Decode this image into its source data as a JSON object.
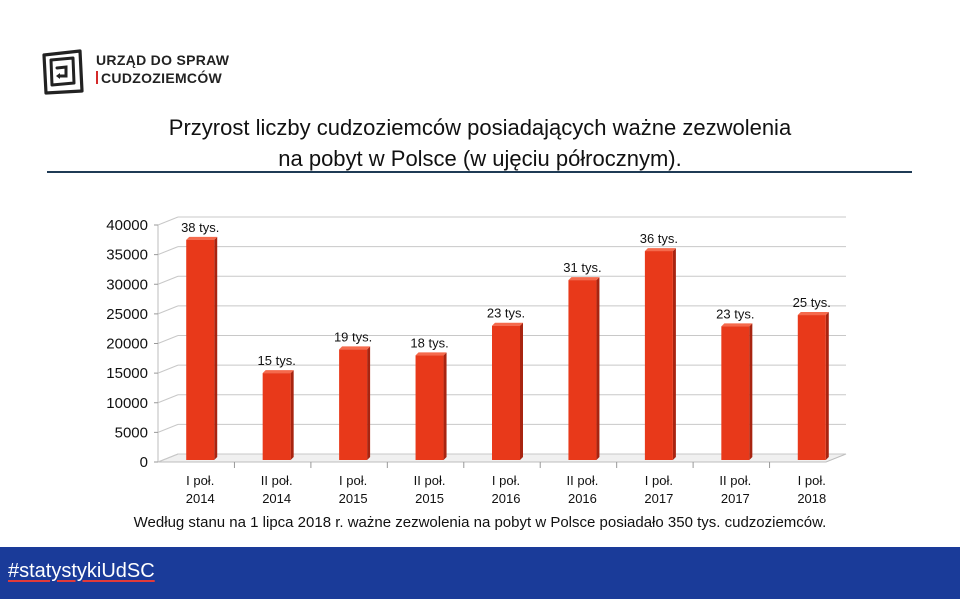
{
  "logo": {
    "line1": "URZĄD DO SPRAW",
    "line2": "CUDZOZIEMCÓW"
  },
  "title": {
    "line1": "Przyrost liczby cudzoziemców posiadających ważne zezwolenia",
    "line2": "na pobyt w Polsce (w ujęciu półrocznym)."
  },
  "footnote": "Według stanu na 1 lipca 2018 r. ważne zezwolenia na pobyt w Polsce posiadało 350 tys. cudzoziemców.",
  "footer": {
    "hashtag": "#statystykiUdSC"
  },
  "colors": {
    "bar": "#e8391a",
    "footer": "#1a3b99",
    "rule": "#1f3b55"
  },
  "chart_data": {
    "type": "bar",
    "title": "",
    "xlabel": "",
    "ylabel": "",
    "ylim": [
      0,
      40000
    ],
    "yticks": [
      0,
      5000,
      10000,
      15000,
      20000,
      25000,
      30000,
      35000,
      40000
    ],
    "grid": true,
    "categories": [
      [
        "I poł.",
        "2014"
      ],
      [
        "II poł.",
        "2014"
      ],
      [
        "I poł.",
        "2015"
      ],
      [
        "II poł.",
        "2015"
      ],
      [
        "I poł.",
        "2016"
      ],
      [
        "II poł.",
        "2016"
      ],
      [
        "I poł.",
        "2017"
      ],
      [
        "II poł.",
        "2017"
      ],
      [
        "I poł.",
        "2018"
      ]
    ],
    "values": [
      37500,
      15000,
      19000,
      18000,
      23000,
      30700,
      35600,
      22900,
      24800
    ],
    "data_labels": [
      "38 tys.",
      "15 tys.",
      "19 tys.",
      "18 tys.",
      "23 tys.",
      "31 tys.",
      "36 tys.",
      "23 tys.",
      "25 tys."
    ]
  }
}
